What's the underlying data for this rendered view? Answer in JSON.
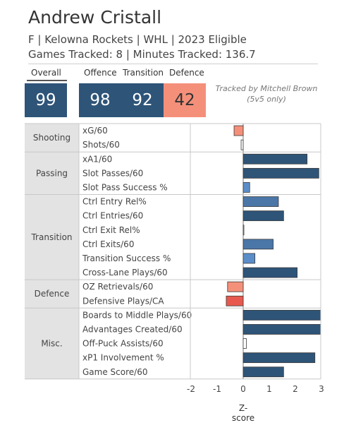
{
  "header": {
    "player_name": "Andrew Cristall",
    "subtitle": "F | Kelowna Rockets | WHL | 2023 Eligible",
    "tracked": "Games Tracked: 8 | Minutes Tracked: 136.7"
  },
  "scores": {
    "overall_label": "Overall",
    "overall_value": "99",
    "offence_label": "Offence",
    "offence_value": "98",
    "transition_label": "Transition",
    "transition_value": "92",
    "defence_label": "Defence",
    "defence_value": "42"
  },
  "credit": "Tracked by Mitchell Brown (5v5 only)",
  "colors": {
    "dark_blue": "#2e5478",
    "mid_blue": "#4b76a8",
    "light_blue": "#5b8dc9",
    "faint_blue": "#a7c3e0",
    "salmon": "#f4907a",
    "red": "#e7594e",
    "category_bg": "#e3e3e3"
  },
  "chart_data": {
    "type": "bar",
    "orientation": "horizontal",
    "xlabel": "Z-score",
    "xlim": [
      -2,
      3
    ],
    "xticks": [
      "-2",
      "-1",
      "0",
      "1",
      "2",
      "3"
    ],
    "groups": [
      {
        "name": "Shooting",
        "metrics": [
          {
            "label": "xG/60",
            "value": -0.35,
            "color": "#f4907a"
          },
          {
            "label": "Shots/60",
            "value": -0.08,
            "color": "#ffffff"
          }
        ]
      },
      {
        "name": "Passing",
        "metrics": [
          {
            "label": "xA1/60",
            "value": 2.45,
            "color": "#2e5478"
          },
          {
            "label": "Slot Passes/60",
            "value": 2.9,
            "color": "#2e5478"
          },
          {
            "label": "Slot Pass Success %",
            "value": 0.25,
            "color": "#5b8dc9"
          }
        ]
      },
      {
        "name": "Transition",
        "metrics": [
          {
            "label": "Ctrl Entry Rel%",
            "value": 1.35,
            "color": "#4b76a8"
          },
          {
            "label": "Ctrl Entries/60",
            "value": 1.55,
            "color": "#2e5478"
          },
          {
            "label": "Ctrl Exit Rel%",
            "value": 0.02,
            "color": "#ffffff"
          },
          {
            "label": "Ctrl Exits/60",
            "value": 1.15,
            "color": "#4b76a8"
          },
          {
            "label": "Transition Success %",
            "value": 0.45,
            "color": "#5b8dc9"
          },
          {
            "label": "Cross-Lane Plays/60",
            "value": 2.07,
            "color": "#2e5478"
          }
        ]
      },
      {
        "name": "Defence",
        "metrics": [
          {
            "label": "OZ Retrievals/60",
            "value": -0.6,
            "color": "#f4907a"
          },
          {
            "label": "Defensive Plays/CA",
            "value": -0.65,
            "color": "#e7594e"
          }
        ]
      },
      {
        "name": "Misc.",
        "metrics": [
          {
            "label": "Boards to Middle Plays/60",
            "value": 3.2,
            "color": "#2e5478"
          },
          {
            "label": "Advantages Created/60",
            "value": 3.2,
            "color": "#2e5478"
          },
          {
            "label": "Off-Puck Assists/60",
            "value": 0.12,
            "color": "#ffffff"
          },
          {
            "label": "xP1 Involvement %",
            "value": 2.75,
            "color": "#2e5478"
          },
          {
            "label": "Game Score/60",
            "value": 1.55,
            "color": "#2e5478"
          }
        ]
      }
    ]
  }
}
